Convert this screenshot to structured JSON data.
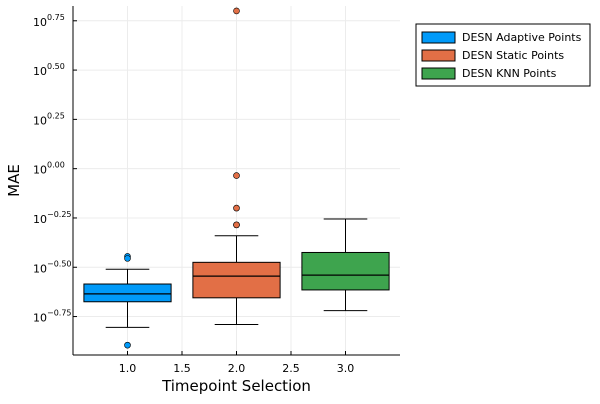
{
  "chart_data": {
    "type": "boxplot",
    "title": "",
    "xlabel": "Timepoint Selection",
    "ylabel": "MAE",
    "y_scale": "log10",
    "xlim": [
      0.5,
      3.5
    ],
    "ylim_log10": [
      -0.945,
      0.825
    ],
    "grid": true,
    "legend_position": "top-right, outside plot",
    "x_ticks": [
      {
        "value": 1.0,
        "label": "1.0"
      },
      {
        "value": 1.5,
        "label": "1.5"
      },
      {
        "value": 2.0,
        "label": "2.0"
      },
      {
        "value": 2.5,
        "label": "2.5"
      },
      {
        "value": 3.0,
        "label": "3.0"
      }
    ],
    "y_ticks": [
      {
        "log10": 0.75,
        "base": "10",
        "exponent": "0.75"
      },
      {
        "log10": 0.5,
        "base": "10",
        "exponent": "0.50"
      },
      {
        "log10": 0.25,
        "base": "10",
        "exponent": "0.25"
      },
      {
        "log10": 0.0,
        "base": "10",
        "exponent": "0.00"
      },
      {
        "log10": -0.25,
        "base": "10",
        "exponent": "−0.25"
      },
      {
        "log10": -0.5,
        "base": "10",
        "exponent": "−0.50"
      },
      {
        "log10": -0.75,
        "base": "10",
        "exponent": "−0.75"
      }
    ],
    "series": [
      {
        "name": "DESN Adaptive Points",
        "color": "#009AF9",
        "x": 1.0,
        "whisker_low_log10": -0.805,
        "q1_log10": -0.675,
        "median_log10": -0.635,
        "q3_log10": -0.585,
        "whisker_high_log10": -0.51,
        "outliers_log10": [
          -0.445,
          -0.455,
          -0.895
        ]
      },
      {
        "name": "DESN Static Points",
        "color": "#E26F46",
        "x": 2.0,
        "whisker_low_log10": -0.79,
        "q1_log10": -0.655,
        "median_log10": -0.545,
        "q3_log10": -0.475,
        "whisker_high_log10": -0.34,
        "outliers_log10": [
          -0.285,
          -0.285,
          -0.2,
          -0.035,
          0.8
        ]
      },
      {
        "name": "DESN KNN Points",
        "color": "#3EA44E",
        "x": 3.0,
        "whisker_low_log10": -0.72,
        "q1_log10": -0.615,
        "median_log10": -0.54,
        "q3_log10": -0.425,
        "whisker_high_log10": -0.255,
        "outliers_log10": []
      }
    ]
  }
}
